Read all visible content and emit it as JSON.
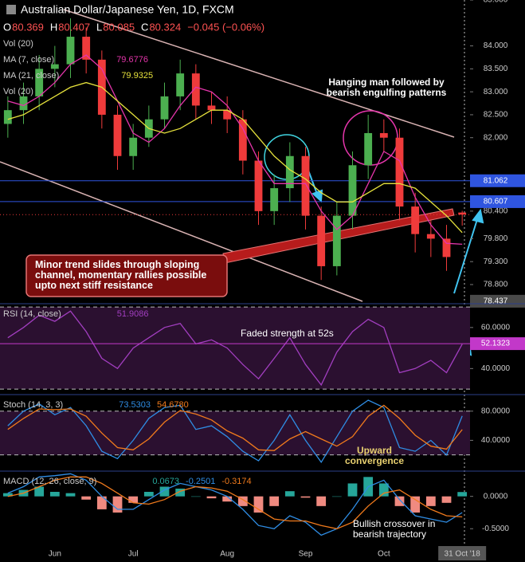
{
  "chart_data": [
    {
      "type": "candlestick",
      "title": "Australian Dollar/Japanese Yen, 1D, FXCM",
      "ohlc_keys": [
        "O",
        "H",
        "L",
        "C"
      ],
      "change_text": "−0.045 (−0.06%)",
      "categories": [
        null,
        null,
        null,
        "Jun",
        null,
        null,
        null,
        null,
        "Jul",
        null,
        null,
        null,
        null,
        null,
        "Aug",
        null,
        null,
        null,
        null,
        "Sep",
        null,
        null,
        null,
        null,
        "Oct",
        null,
        null,
        null,
        null,
        "31 Oct '18"
      ],
      "open": [
        82.3,
        82.6,
        82.9,
        83.5,
        83.6,
        84.2,
        83.7,
        82.5,
        81.6,
        82.0,
        82.4,
        82.9,
        83.4,
        82.7,
        82.6,
        82.4,
        81.5,
        80.4,
        80.9,
        81.6,
        80.3,
        79.2,
        80.3,
        81.4,
        82.1,
        82.0,
        80.5,
        79.9,
        79.8,
        80.369
      ],
      "high": [
        82.9,
        83.2,
        83.8,
        84.0,
        84.6,
        84.4,
        83.9,
        82.7,
        82.3,
        82.7,
        83.2,
        83.7,
        83.6,
        83.0,
        82.9,
        82.6,
        81.7,
        81.2,
        81.9,
        81.8,
        80.5,
        80.6,
        81.7,
        82.5,
        82.4,
        82.2,
        80.8,
        80.2,
        80.1,
        80.407
      ],
      "low": [
        82.0,
        82.3,
        82.6,
        83.1,
        83.3,
        83.4,
        82.2,
        81.3,
        81.3,
        81.8,
        82.2,
        82.6,
        82.4,
        82.3,
        82.1,
        81.2,
        80.1,
        80.1,
        80.6,
        80.0,
        78.9,
        79.0,
        80.0,
        81.1,
        81.7,
        80.2,
        79.5,
        79.4,
        79.1,
        80.085
      ],
      "close": [
        82.6,
        82.9,
        83.5,
        83.6,
        84.2,
        83.7,
        82.5,
        81.6,
        82.0,
        82.4,
        82.9,
        83.4,
        82.7,
        82.6,
        82.4,
        81.5,
        80.4,
        80.9,
        81.6,
        80.3,
        79.2,
        80.3,
        81.4,
        82.1,
        82.0,
        80.5,
        79.9,
        79.8,
        79.4,
        80.324
      ],
      "up_color": "#4caf50",
      "down_color": "#ef3b3b",
      "extra_labels": [
        "Vol (20)",
        "Vol (20)"
      ],
      "series": [
        {
          "name": "MA (7, close)",
          "color": "#e535ab",
          "values": [
            82.8,
            82.7,
            82.9,
            83.2,
            83.6,
            83.8,
            83.5,
            82.8,
            82.1,
            81.9,
            82.2,
            82.7,
            83.1,
            83.0,
            82.7,
            82.2,
            81.5,
            81.0,
            81.0,
            81.0,
            80.4,
            80.0,
            80.3,
            81.0,
            81.7,
            81.5,
            80.7,
            80.1,
            79.7,
            79.6776
          ]
        },
        {
          "name": "MA (21, close)",
          "color": "#e6e23c",
          "values": [
            82.4,
            82.5,
            82.7,
            82.9,
            83.1,
            83.2,
            83.1,
            82.8,
            82.5,
            82.2,
            82.1,
            82.2,
            82.4,
            82.6,
            82.6,
            82.4,
            82.0,
            81.6,
            81.3,
            81.1,
            80.8,
            80.6,
            80.6,
            80.8,
            81.0,
            81.0,
            80.9,
            80.6,
            80.3,
            79.9325
          ]
        }
      ],
      "ylim": [
        78.4,
        85.0
      ],
      "yticks": [
        {
          "value": 85,
          "label": "85.000"
        },
        {
          "value": 84,
          "label": "84.000"
        },
        {
          "value": 83.5,
          "label": "83.500"
        },
        {
          "value": 83,
          "label": "83.000"
        },
        {
          "value": 82.5,
          "label": "82.500"
        },
        {
          "value": 82,
          "label": "82.000"
        },
        {
          "value": 80.4,
          "label": "80.400"
        },
        {
          "value": 79.8,
          "label": "79.800"
        },
        {
          "value": 79.3,
          "label": "79.300"
        },
        {
          "value": 78.8,
          "label": "78.800"
        }
      ],
      "hlines": [
        81.062,
        80.607
      ],
      "hline_color": "#2f55e0",
      "marker": 78.437,
      "marker_color": "#4a4a4a",
      "annotations": [
        "Hanging man followed by bearish engulfing patterns",
        "Minor trend slides through sloping channel, momentary rallies possible upto next stiff resistance"
      ]
    },
    {
      "type": "line",
      "label": "RSI (14, close)",
      "series": [
        {
          "color": "#a23ec0",
          "values": [
            55,
            60,
            66,
            63,
            68,
            58,
            45,
            40,
            50,
            55,
            60,
            62,
            52,
            54,
            50,
            42,
            35,
            45,
            55,
            42,
            32,
            48,
            58,
            64,
            60,
            38,
            40,
            44,
            38,
            51.9086
          ]
        }
      ],
      "band": [
        30,
        70
      ],
      "band_color": "#2b1030",
      "ylim": [
        27.7,
        71.2
      ],
      "yticks": [
        {
          "value": 60,
          "label": "60.0000"
        },
        {
          "value": 40,
          "label": "40.0000"
        }
      ],
      "marker": 52.1323,
      "marker_color": "#c238c9",
      "annotations": [
        "Faded strength at 52s"
      ]
    },
    {
      "type": "line",
      "label": "Stoch (14, 3, 3)",
      "series": [
        {
          "color": "#2f8de4",
          "values": [
            60,
            80,
            90,
            75,
            85,
            60,
            25,
            15,
            40,
            70,
            85,
            88,
            55,
            60,
            45,
            25,
            12,
            40,
            75,
            40,
            10,
            45,
            80,
            95,
            85,
            30,
            25,
            40,
            20,
            73.5303
          ]
        },
        {
          "color": "#f07a1c",
          "values": [
            55,
            70,
            83,
            82,
            83,
            73,
            50,
            30,
            27,
            42,
            65,
            81,
            76,
            68,
            53,
            43,
            27,
            26,
            42,
            52,
            42,
            32,
            45,
            73,
            88,
            70,
            47,
            32,
            28,
            54.678
          ],
          "readout_label": "54.6780"
        }
      ],
      "band": [
        20,
        80
      ],
      "band_color": "#2b1030",
      "ylim": [
        -1.1,
        101.6
      ],
      "yticks": [
        {
          "value": 80,
          "label": "80.0000"
        },
        {
          "value": 40,
          "label": "40.0000"
        }
      ],
      "annotations": [
        "Upward convergence"
      ]
    },
    {
      "type": "combo",
      "label": "MACD (12, 26, close, 9)",
      "series": [
        {
          "kind": "bar",
          "color": "#26a69a",
          "negative_color": "#ef8a80",
          "values": [
            0.05,
            0.1,
            0.15,
            0.07,
            0.05,
            -0.05,
            -0.2,
            -0.25,
            -0.1,
            0.07,
            0.15,
            0.12,
            0.0,
            -0.03,
            -0.08,
            -0.15,
            -0.25,
            -0.15,
            0.08,
            -0.02,
            -0.15,
            0.0,
            0.2,
            0.3,
            0.2,
            -0.15,
            -0.25,
            -0.15,
            -0.1,
            0.0673
          ]
        },
        {
          "kind": "line",
          "color": "#2f8de4",
          "values": [
            0.05,
            0.15,
            0.3,
            0.32,
            0.35,
            0.25,
            0.0,
            -0.2,
            -0.2,
            -0.05,
            0.1,
            0.2,
            0.15,
            0.1,
            0.0,
            -0.2,
            -0.45,
            -0.5,
            -0.3,
            -0.4,
            -0.6,
            -0.5,
            -0.2,
            0.15,
            0.25,
            -0.05,
            -0.3,
            -0.35,
            -0.4,
            -0.2501
          ]
        },
        {
          "kind": "line",
          "color": "#f07a1c",
          "values": [
            0.0,
            0.05,
            0.15,
            0.25,
            0.3,
            0.3,
            0.2,
            0.05,
            -0.1,
            -0.12,
            -0.05,
            0.08,
            0.15,
            0.13,
            0.08,
            -0.05,
            -0.2,
            -0.35,
            -0.38,
            -0.38,
            -0.45,
            -0.5,
            -0.4,
            -0.15,
            0.05,
            0.1,
            -0.05,
            -0.2,
            -0.3,
            -0.3174
          ]
        }
      ],
      "ylim": [
        -0.768,
        0.378
      ],
      "yticks": [
        {
          "value": 0,
          "label": "0.0000"
        },
        {
          "value": -0.5,
          "label": "-0.5000"
        }
      ],
      "annotations": [
        "Bullish crossover in bearish trajectory"
      ]
    }
  ]
}
